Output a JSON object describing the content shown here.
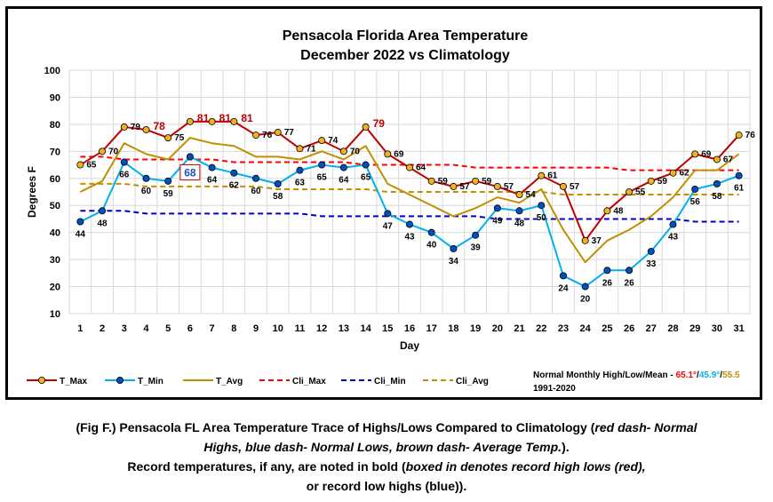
{
  "chart_data": {
    "type": "line",
    "title": "Pensacola Florida Area Temperature",
    "subtitle": "December 2022 vs Climatology",
    "xlabel": "Day",
    "ylabel": "Degrees F",
    "ylim": [
      10,
      100
    ],
    "yticks": [
      10,
      20,
      30,
      40,
      50,
      60,
      70,
      80,
      90,
      100
    ],
    "categories": [
      1,
      2,
      3,
      4,
      5,
      6,
      7,
      8,
      9,
      10,
      11,
      12,
      13,
      14,
      15,
      16,
      17,
      18,
      19,
      20,
      21,
      22,
      23,
      24,
      25,
      26,
      27,
      28,
      29,
      30,
      31
    ],
    "grid": true,
    "series": [
      {
        "name": "T_Max",
        "color": "#c00000",
        "marker": "#f0b020",
        "values": [
          65,
          70,
          79,
          78,
          75,
          81,
          81,
          81,
          76,
          77,
          71,
          74,
          70,
          79,
          69,
          64,
          59,
          57,
          59,
          57,
          54,
          61,
          57,
          37,
          48,
          55,
          59,
          62,
          69,
          67,
          76
        ]
      },
      {
        "name": "T_Min",
        "color": "#00b0f0",
        "marker": "#0050c0",
        "values": [
          44,
          48,
          66,
          60,
          59,
          68,
          64,
          62,
          60,
          58,
          63,
          65,
          64,
          65,
          47,
          43,
          40,
          34,
          39,
          49,
          48,
          50,
          24,
          20,
          26,
          26,
          33,
          43,
          56,
          58,
          61
        ]
      },
      {
        "name": "T_Avg",
        "color": "#bf9000",
        "values": [
          55,
          59,
          73,
          69,
          67,
          75,
          73,
          72,
          68,
          68,
          67,
          70,
          67,
          72,
          58,
          54,
          50,
          46,
          49,
          53,
          51,
          56,
          41,
          29,
          37,
          41,
          46,
          53,
          63,
          63,
          69
        ]
      },
      {
        "name": "Cli_Max",
        "color": "#ff0000",
        "dash": true,
        "values": [
          68,
          68,
          67,
          67,
          67,
          67,
          67,
          66,
          66,
          66,
          66,
          66,
          66,
          65,
          65,
          65,
          65,
          65,
          64,
          64,
          64,
          64,
          64,
          64,
          64,
          63,
          63,
          63,
          63,
          63,
          63
        ]
      },
      {
        "name": "Cli_Min",
        "color": "#0000cc",
        "dash": true,
        "values": [
          48,
          48,
          48,
          47,
          47,
          47,
          47,
          47,
          47,
          47,
          47,
          46,
          46,
          46,
          46,
          46,
          46,
          46,
          46,
          45,
          45,
          45,
          45,
          45,
          45,
          45,
          45,
          45,
          44,
          44,
          44
        ]
      },
      {
        "name": "Cli_Avg",
        "color": "#bf9000",
        "dash": true,
        "values": [
          58,
          58,
          58,
          57,
          57,
          57,
          57,
          57,
          57,
          56,
          56,
          56,
          56,
          56,
          55,
          55,
          55,
          55,
          55,
          55,
          55,
          55,
          54,
          54,
          54,
          54,
          54,
          54,
          54,
          54,
          54
        ]
      }
    ],
    "max_labels": [
      "65",
      "70",
      "79",
      "78",
      "75",
      "81",
      "81",
      "81",
      "76",
      "77",
      "71",
      "74",
      "70",
      "79",
      "69",
      "64",
      "59",
      "57",
      "59",
      "57",
      "54",
      "61",
      "57",
      "37",
      "48",
      "55",
      "59",
      "62",
      "69",
      "67",
      "76"
    ],
    "min_labels": [
      "44",
      "48",
      "66",
      "60",
      "59",
      "68",
      "64",
      "62",
      "60",
      "58",
      "63",
      "65",
      "64",
      "65",
      "47",
      "43",
      "40",
      "34",
      "39",
      "49",
      "48",
      "50",
      "24",
      "20",
      "26",
      "26",
      "33",
      "43",
      "56",
      "58",
      "61"
    ],
    "record_high_days": [
      4,
      6,
      7,
      8,
      14
    ],
    "record_high_low_days": [
      6
    ],
    "legend": {
      "entries": [
        "T_Max",
        "T_Min",
        "T_Avg",
        "Cli_Max",
        "Cli_Min",
        "Cli_Avg"
      ],
      "normals_label": "Normal Monthly High/Low/Mean - ",
      "normal_high": "65.1°",
      "normal_low": "45.9°",
      "normal_mean": "55.5",
      "slash": "/",
      "period": "1991-2020",
      "high_color": "#ff0000",
      "low_color": "#00b0f0",
      "mean_color": "#bf9000"
    }
  },
  "caption": {
    "line1_a": "(Fig F.) Pensacola FL Area Temperature Trace of Highs/Lows Compared to Climatology (",
    "line1_b": "red dash- Normal",
    "line2_a": "Highs, blue dash- Normal Lows, brown dash- Average Temp.",
    "line2_b": ").",
    "line3_a": "Record temperatures, if any, are noted in bold (",
    "line3_b": "boxed in denotes record high lows (red),",
    "line4_a": "or record low highs (blue)",
    "line4_b": ")."
  }
}
